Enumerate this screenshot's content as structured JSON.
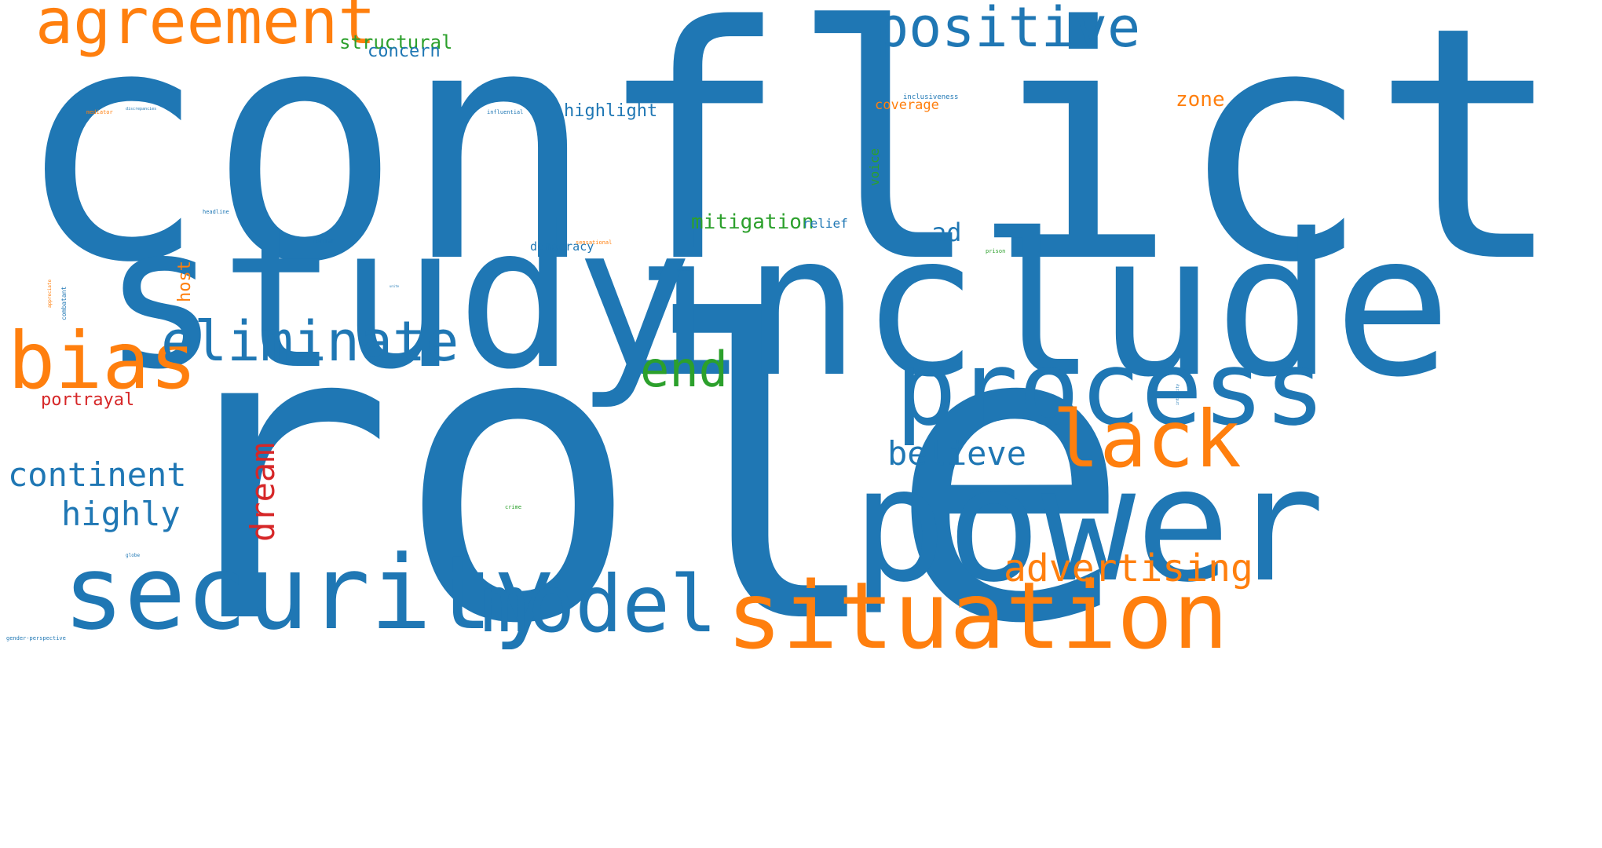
{
  "palette": {
    "blue": "#1f77b4",
    "orange": "#ff7f0e",
    "green": "#2ca02c",
    "red": "#d62728",
    "background": "#ffffff"
  },
  "words": {
    "conflict": "conflict",
    "role": "role",
    "include": "include",
    "study": "study",
    "power": "power",
    "process": "process",
    "security": "security",
    "situation": "situation",
    "agreement": "agreement",
    "positive": "positive",
    "bias": "bias",
    "eliminate": "eliminate",
    "lack": "lack",
    "model": "model",
    "end": "end",
    "advertising": "advertising",
    "continent": "continent",
    "believe": "believe",
    "highly": "highly",
    "dream": "dream",
    "structural": "structural",
    "concern": "concern",
    "mitigation": "mitigation",
    "highlight": "highlight",
    "zone": "zone",
    "ad": "ad",
    "portrayal": "portrayal",
    "host": "host",
    "coverage": "coverage",
    "relief": "relief",
    "democracy": "democracy",
    "voice": "voice",
    "inclusiveness": "inclusiveness",
    "influential": "influential",
    "mediator": "mediator",
    "discrepancies": "discrepancies",
    "headline": "headline",
    "former": "former",
    "sensational": "sensational",
    "prison": "prison",
    "appreciate": "appreciate",
    "combatant": "combatant",
    "integrity": "integrity",
    "crime": "crime",
    "globe": "globe",
    "gender_perspective": "gender-perspective",
    "tiny1": "unite",
    "tiny2": "granted"
  }
}
